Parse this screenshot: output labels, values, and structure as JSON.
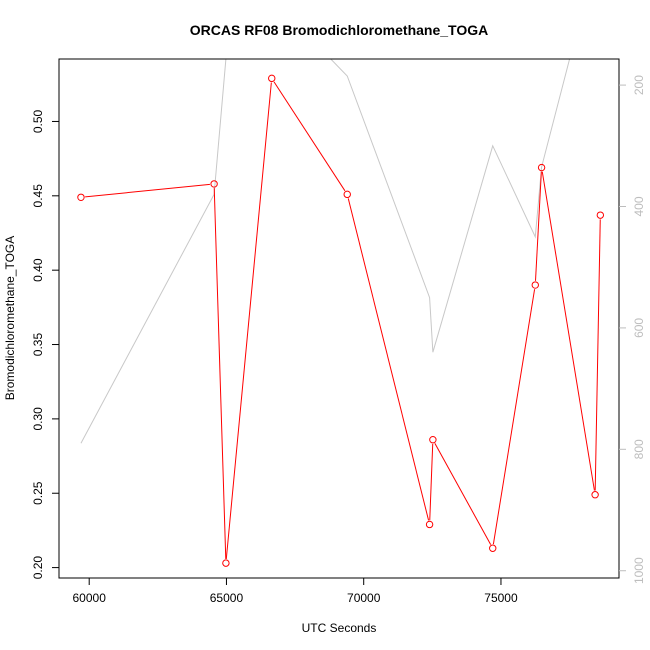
{
  "chart_data": {
    "type": "line",
    "title": "ORCAS RF08 Bromodichloromethane_TOGA",
    "xlabel": "UTC Seconds",
    "ylabel": "Bromodichloromethane_TOGA",
    "xlim": [
      58900,
      79300
    ],
    "ylim": [
      0.193,
      0.542
    ],
    "xticks": [
      60000,
      65000,
      70000,
      75000
    ],
    "yticks": [
      0.2,
      0.25,
      0.3,
      0.35,
      0.4,
      0.45,
      0.5
    ],
    "y2lim": [
      1012,
      157
    ],
    "y2ticks": [
      200,
      400,
      600,
      800,
      1000
    ],
    "colors": {
      "primary": "#ff0000",
      "secondary": "#c8c8c8",
      "axis": "#000000",
      "secondary_axis": "#bdbdbd"
    },
    "series": [
      {
        "axis": "left",
        "markers": true,
        "x": [
          59700,
          64550,
          64980,
          66650,
          69400,
          72400,
          72520,
          74700,
          76250,
          76480,
          78430,
          78620
        ],
        "values": [
          0.449,
          0.458,
          0.203,
          0.529,
          0.451,
          0.229,
          0.286,
          0.213,
          0.39,
          0.469,
          0.249,
          0.437
        ]
      },
      {
        "axis": "right",
        "markers": false,
        "x": [
          59700,
          64550,
          64980,
          66650,
          68800,
          69400,
          72400,
          72520,
          74700,
          76250,
          76480,
          77500
        ],
        "values": [
          790,
          380,
          157,
          157,
          157,
          185,
          550,
          640,
          300,
          450,
          335,
          157
        ]
      }
    ]
  }
}
